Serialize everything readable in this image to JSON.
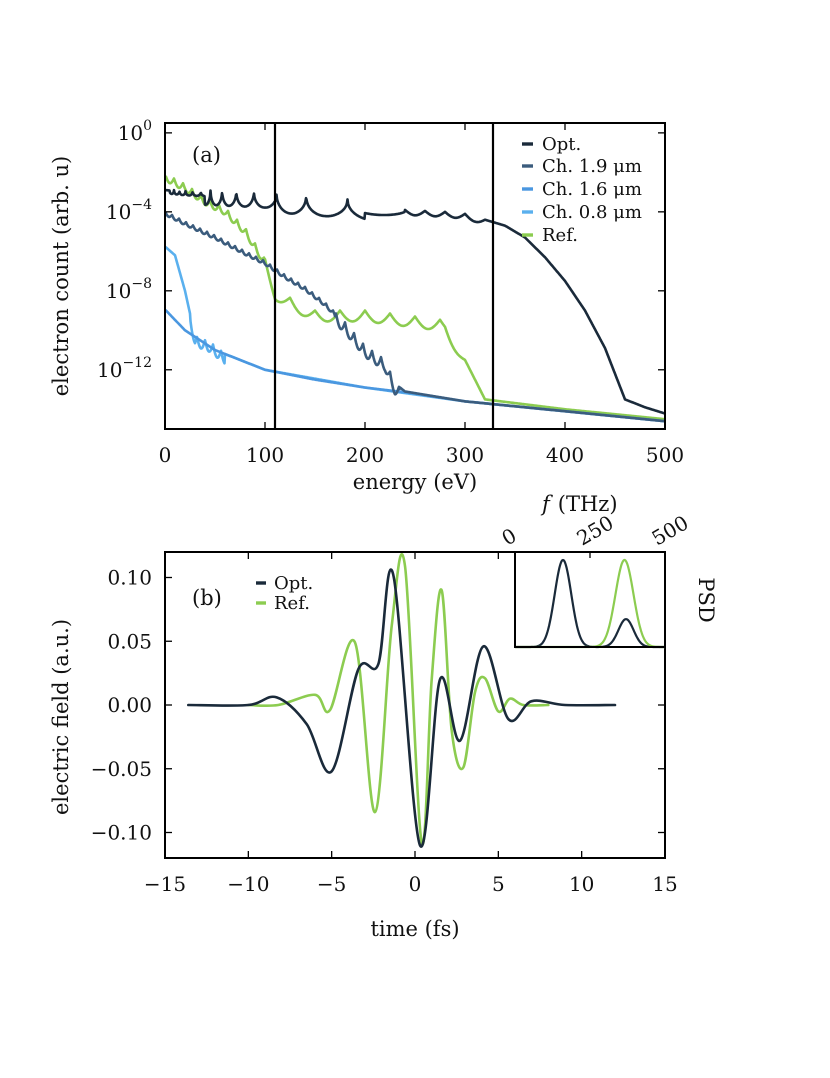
{
  "chart_data": [
    {
      "type": "line",
      "panel_label": "(a)",
      "xlabel": "energy (eV)",
      "ylabel": "electron count (arb. u)",
      "xlim": [
        0,
        500
      ],
      "ylim_log10": [
        -15,
        0.5
      ],
      "yscale": "log",
      "xticks": [
        0,
        100,
        200,
        300,
        400,
        500
      ],
      "yticks": [
        {
          "base": "10",
          "exp": "0",
          "value": 0
        },
        {
          "base": "10",
          "exp": "−4",
          "value": -4
        },
        {
          "base": "10",
          "exp": "−8",
          "value": -8
        },
        {
          "base": "10",
          "exp": "−12",
          "value": -12
        }
      ],
      "vertical_lines_eV": [
        110,
        328
      ],
      "legend": [
        "Opt.",
        "Ch. 1.9 μm",
        "Ch. 1.6 μm",
        "Ch. 0.8 μm",
        "Ref."
      ],
      "series": [
        {
          "name": "Opt.",
          "color": "#1a2a3a",
          "log10_y_at": [
            [
              1,
              -2.9
            ],
            [
              20,
              -3.0
            ],
            [
              60,
              -3.1
            ],
            [
              100,
              -3.2
            ],
            [
              130,
              -3.4
            ],
            [
              160,
              -3.5
            ],
            [
              200,
              -3.7
            ],
            [
              240,
              -3.9
            ],
            [
              280,
              -4.0
            ],
            [
              300,
              -4.1
            ],
            [
              320,
              -4.4
            ],
            [
              340,
              -4.7
            ],
            [
              360,
              -5.3
            ],
            [
              380,
              -6.3
            ],
            [
              400,
              -7.5
            ],
            [
              420,
              -9.0
            ],
            [
              440,
              -10.9
            ],
            [
              460,
              -13.5
            ],
            [
              480,
              -13.9
            ],
            [
              499,
              -14.2
            ]
          ]
        },
        {
          "name": "Ch. 1.9 μm",
          "color": "#3b5c7d",
          "log10_y_at": [
            [
              1,
              -4.0
            ],
            [
              20,
              -4.5
            ],
            [
              50,
              -5.2
            ],
            [
              80,
              -6.0
            ],
            [
              100,
              -6.5
            ],
            [
              120,
              -7.2
            ],
            [
              140,
              -7.8
            ],
            [
              160,
              -8.6
            ],
            [
              180,
              -9.6
            ],
            [
              200,
              -10.8
            ],
            [
              220,
              -11.5
            ],
            [
              230,
              -12.7
            ],
            [
              240,
              -13.1
            ],
            [
              300,
              -13.6
            ],
            [
              400,
              -14.1
            ],
            [
              499,
              -14.6
            ]
          ]
        },
        {
          "name": "Ch. 1.6 μm",
          "color": "#4a97e0",
          "log10_y_at": [
            [
              1,
              -9.0
            ],
            [
              20,
              -10.0
            ],
            [
              50,
              -11.0
            ],
            [
              100,
              -12.0
            ],
            [
              150,
              -12.5
            ],
            [
              200,
              -12.9
            ],
            [
              250,
              -13.2
            ],
            [
              300,
              -13.6
            ],
            [
              400,
              -14.1
            ],
            [
              499,
              -14.6
            ]
          ]
        },
        {
          "name": "Ch. 0.8 μm",
          "color": "#5ab0ee",
          "log10_y_at": [
            [
              1,
              -5.8
            ],
            [
              10,
              -6.2
            ],
            [
              20,
              -8.0
            ],
            [
              30,
              -10.3
            ],
            [
              45,
              -10.6
            ],
            [
              60,
              -11.2
            ],
            [
              100,
              -12.0
            ],
            [
              200,
              -12.9
            ],
            [
              300,
              -13.6
            ],
            [
              499,
              -14.6
            ]
          ]
        },
        {
          "name": "Ref.",
          "color": "#8ccc50",
          "log10_y_at": [
            [
              1,
              -2.1
            ],
            [
              20,
              -2.6
            ],
            [
              40,
              -3.3
            ],
            [
              60,
              -3.8
            ],
            [
              80,
              -4.8
            ],
            [
              100,
              -6.4
            ],
            [
              110,
              -7.9
            ],
            [
              130,
              -8.5
            ],
            [
              150,
              -9.0
            ],
            [
              200,
              -9.0
            ],
            [
              250,
              -9.3
            ],
            [
              280,
              -9.5
            ],
            [
              300,
              -11.5
            ],
            [
              320,
              -13.5
            ],
            [
              400,
              -14.0
            ],
            [
              499,
              -14.5
            ]
          ]
        }
      ]
    },
    {
      "type": "line",
      "panel_label": "(b)",
      "xlabel": "time (fs)",
      "ylabel": "electric field (a.u.)",
      "xlim": [
        -15,
        15
      ],
      "ylim": [
        -0.12,
        0.12
      ],
      "xticks": [
        -15,
        -10,
        -5,
        0,
        5,
        10,
        15
      ],
      "xtick_labels": [
        "−15",
        "−10",
        "−5",
        "0",
        "5",
        "10",
        "15"
      ],
      "yticks": [
        0.1,
        0.05,
        0.0,
        -0.05,
        -0.1
      ],
      "ytick_labels": [
        "0.10",
        "0.05",
        "0.00",
        "−0.05",
        "−0.10"
      ],
      "legend": [
        "Opt.",
        "Ref."
      ],
      "series": [
        {
          "name": "Opt.",
          "color": "#1a2a3a",
          "x": [
            -13.6,
            -10,
            -8.3,
            -6.5,
            -5.0,
            -3.4,
            -2.2,
            -1.3,
            0.3,
            1.5,
            2.7,
            4.1,
            5.6,
            7.0,
            9.0,
            12.0
          ],
          "y": [
            0,
            0,
            0.006,
            -0.015,
            -0.052,
            0.028,
            0.032,
            0.102,
            -0.11,
            0.02,
            -0.028,
            0.046,
            -0.011,
            0.003,
            0,
            0
          ]
        },
        {
          "name": "Ref.",
          "color": "#8ccc50",
          "x": [
            -10,
            -8.2,
            -6.0,
            -5.1,
            -3.6,
            -2.4,
            -1.4,
            -0.6,
            0.4,
            1.0,
            1.6,
            2.2,
            2.9,
            3.6,
            4.2,
            5.0,
            5.7,
            6.5,
            8.0
          ],
          "y": [
            0,
            0,
            0.008,
            -0.004,
            0.049,
            -0.084,
            0.062,
            0.109,
            -0.108,
            0.02,
            0.09,
            -0.02,
            -0.049,
            0.01,
            0.021,
            -0.005,
            0.005,
            0,
            0
          ]
        }
      ],
      "inset": {
        "xlabel": "f (THz)",
        "xlabel_italic_symbol": "f",
        "xlabel_unit": "(THz)",
        "xticks": [
          0,
          250,
          500
        ],
        "ylabel": "PSD",
        "xlim": [
          0,
          500
        ],
        "series": [
          {
            "name": "Opt.",
            "color": "#1a2a3a",
            "peaks": [
              {
                "center_THz": 160,
                "width_THz": 35,
                "height": 1.0
              },
              {
                "center_THz": 370,
                "width_THz": 32,
                "height": 0.32
              }
            ]
          },
          {
            "name": "Ref.",
            "color": "#8ccc50",
            "peaks": [
              {
                "center_THz": 365,
                "width_THz": 38,
                "height": 1.0
              }
            ]
          }
        ]
      }
    }
  ]
}
